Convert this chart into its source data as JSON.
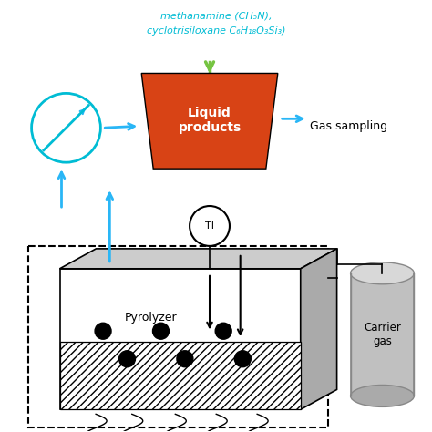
{
  "bg_color": "#ffffff",
  "text_top1": "methanamine (CH₅N),",
  "text_top2": "cyclotrisiloxane C₆H₁₈O₃Si₃)",
  "text_top_color": "#00bcd4",
  "text_liquid": "Liquid\nproducts",
  "text_gas_sampling": "Gas sampling",
  "text_pyrolyzer": "Pyrolyzer",
  "text_TI": "TI",
  "text_carrier": "Carrier\ngas",
  "liquid_box_color": "#d84315",
  "arrow_color_blue": "#29b6f6",
  "arrow_color_green": "#76c442",
  "arrow_color_black": "#000000",
  "circle_color": "#00bcd4"
}
